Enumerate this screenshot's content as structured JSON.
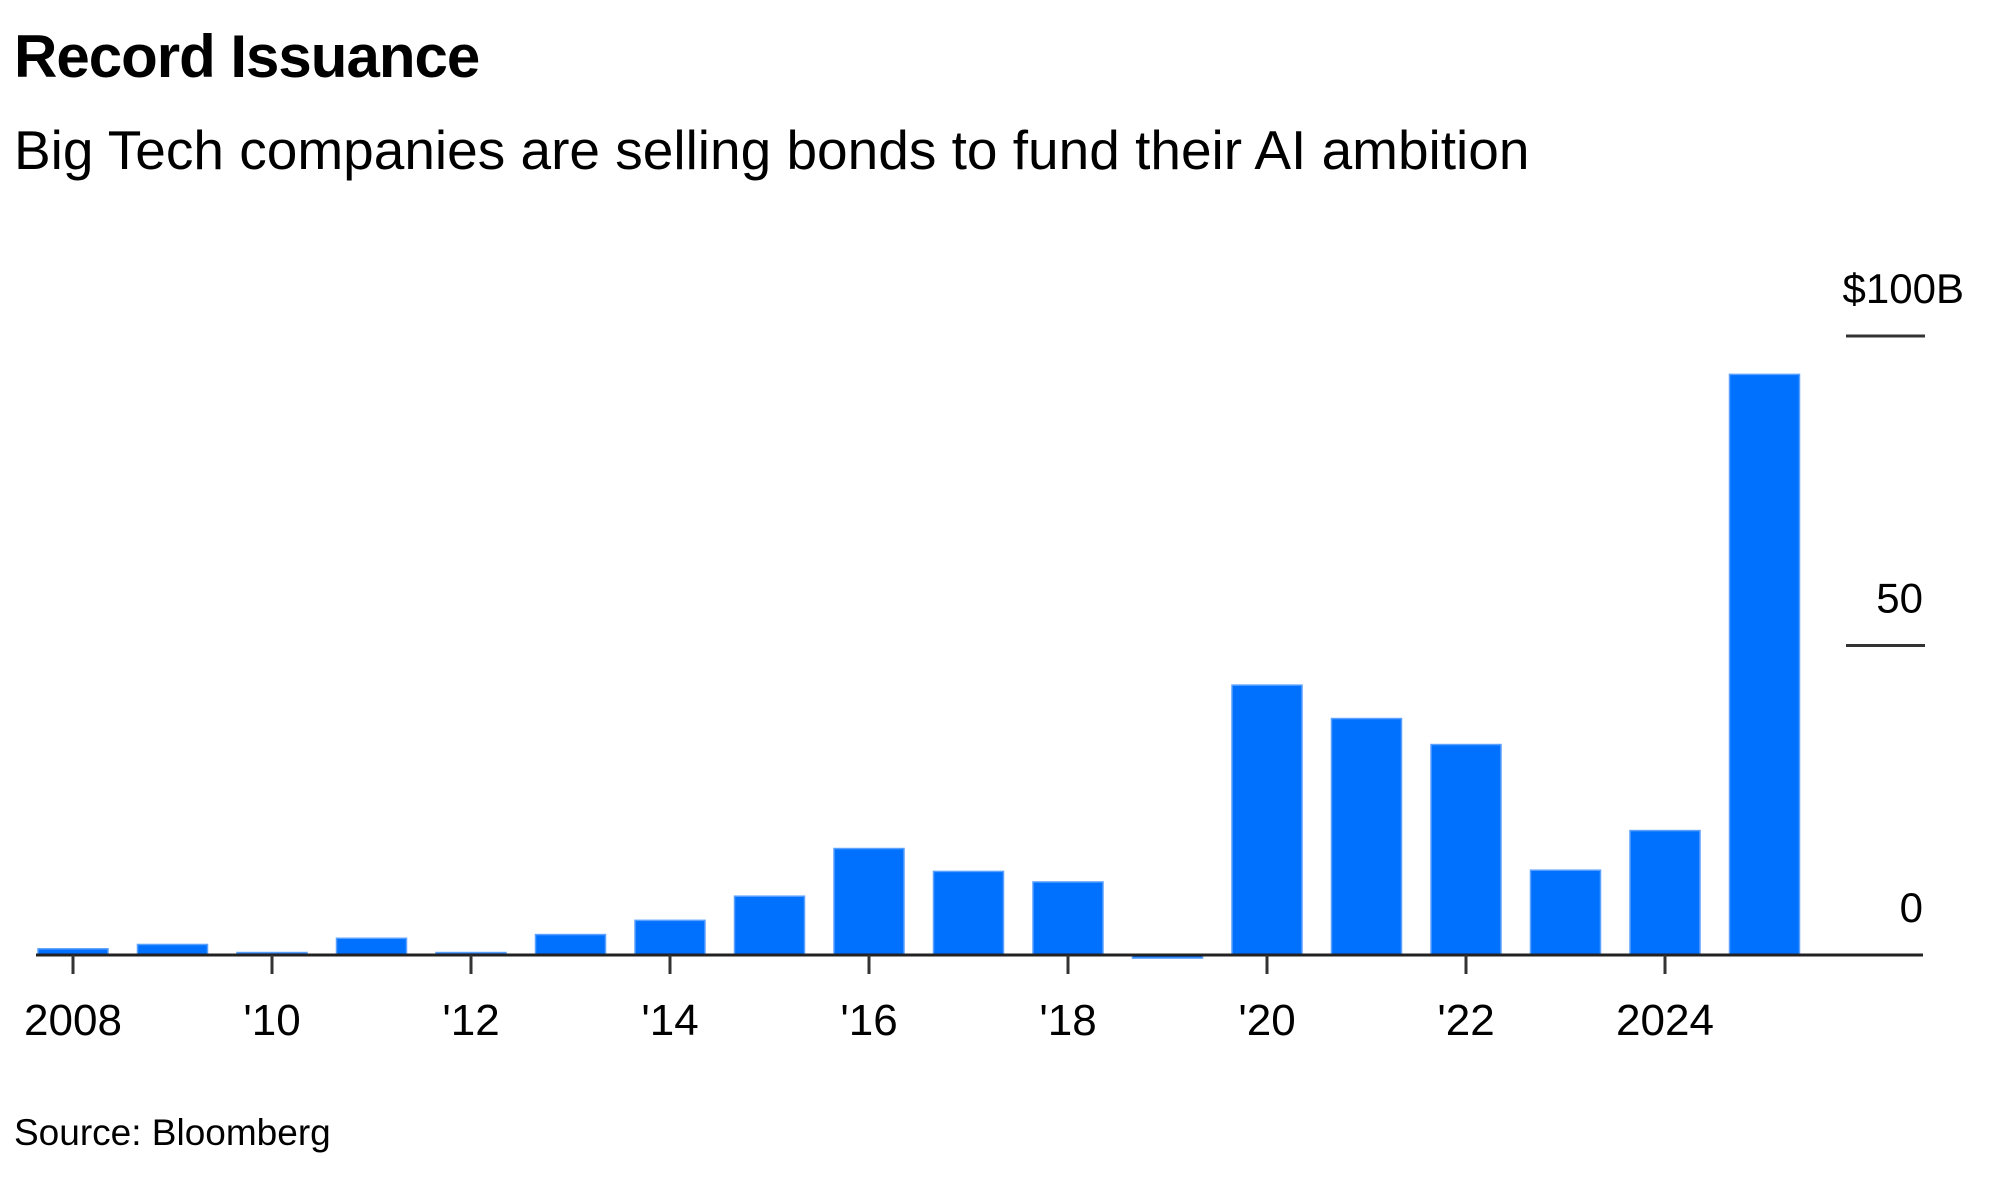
{
  "chart_data": {
    "type": "bar",
    "title": "Record Issuance",
    "subtitle": "Big Tech companies are selling bonds to fund their AI ambition",
    "source": "Source: Bloomberg",
    "categories": [
      2008,
      2009,
      2010,
      2011,
      2012,
      2013,
      2014,
      2015,
      2016,
      2017,
      2018,
      2019,
      2020,
      2021,
      2022,
      2023,
      2024,
      2025
    ],
    "values": [
      1.0,
      1.7,
      0.4,
      2.7,
      0.4,
      3.3,
      5.6,
      9.5,
      17.2,
      13.5,
      11.8,
      -0.5,
      43.6,
      38.2,
      34.0,
      13.7,
      20.1,
      93.8
    ],
    "xlabel": "",
    "ylabel": "",
    "ylim": [
      0,
      100
    ],
    "y_ticks": [
      {
        "value": 0,
        "label": "0"
      },
      {
        "value": 50,
        "label": "50"
      },
      {
        "value": 100,
        "label": "$100B"
      }
    ],
    "x_ticks": [
      {
        "value": 2008,
        "label": "2008"
      },
      {
        "value": 2010,
        "label": "'10"
      },
      {
        "value": 2012,
        "label": "'12"
      },
      {
        "value": 2014,
        "label": "'14"
      },
      {
        "value": 2016,
        "label": "'16"
      },
      {
        "value": 2018,
        "label": "'18"
      },
      {
        "value": 2020,
        "label": "'20"
      },
      {
        "value": 2022,
        "label": "'22"
      },
      {
        "value": 2024,
        "label": "2024"
      }
    ],
    "y_axis_position": "right",
    "grid": false,
    "bar_color": "#0070ff"
  }
}
